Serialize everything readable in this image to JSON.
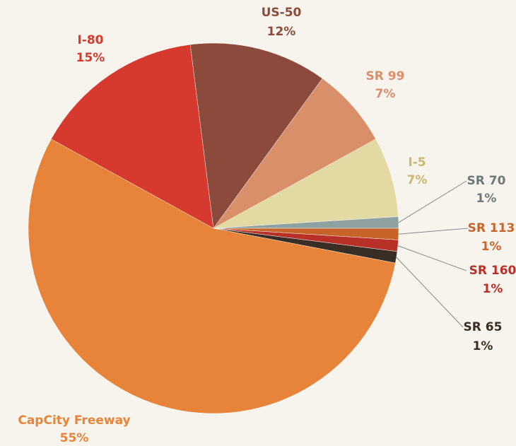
{
  "chart_data": {
    "type": "pie",
    "categories": [
      "CapCity Freeway",
      "I-80",
      "US-50",
      "SR 99",
      "I-5",
      "SR 70",
      "SR 113",
      "SR 160",
      "SR 65"
    ],
    "values": [
      55,
      15,
      12,
      7,
      7,
      1,
      1,
      1,
      1
    ],
    "value_labels": [
      "55%",
      "15%",
      "12%",
      "7%",
      "7%",
      "1%",
      "1%",
      "1%",
      "1%"
    ],
    "colors": [
      "#e8843a",
      "#d63a2e",
      "#8b4a3c",
      "#d9906a",
      "#e3d9a2",
      "#8fa0a0",
      "#c8642a",
      "#b83028",
      "#3a2e24"
    ]
  }
}
